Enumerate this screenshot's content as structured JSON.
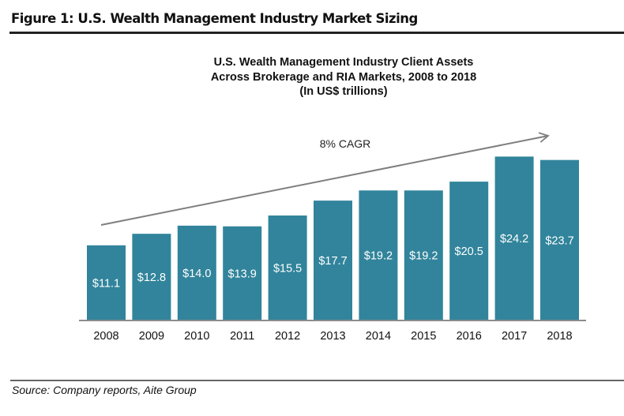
{
  "figure_title": "Figure 1: U.S. Wealth Management Industry Market Sizing",
  "source": "Source: Company reports, Aite Group",
  "chart_data": {
    "type": "bar",
    "title_lines": [
      "U.S. Wealth Management Industry Client Assets",
      "Across Brokerage and RIA Markets, 2008 to 2018",
      "(In US$ trillions)"
    ],
    "categories": [
      "2008",
      "2009",
      "2010",
      "2011",
      "2012",
      "2013",
      "2014",
      "2015",
      "2016",
      "2017",
      "2018"
    ],
    "values": [
      11.1,
      12.8,
      14.0,
      13.9,
      15.5,
      17.7,
      19.2,
      19.2,
      20.5,
      24.2,
      23.7
    ],
    "data_labels": [
      "$11.1",
      "$12.8",
      "$14.0",
      "$13.9",
      "$15.5",
      "$17.7",
      "$19.2",
      "$19.2",
      "$20.5",
      "$24.2",
      "$23.7"
    ],
    "annotation": "8% CAGR",
    "xlabel": "",
    "ylabel": "",
    "ylim": [
      0,
      25
    ],
    "grid": false,
    "bar_color": "#31849b",
    "label_color": "#ffffff",
    "arrow_color": "#7f7f7f"
  }
}
